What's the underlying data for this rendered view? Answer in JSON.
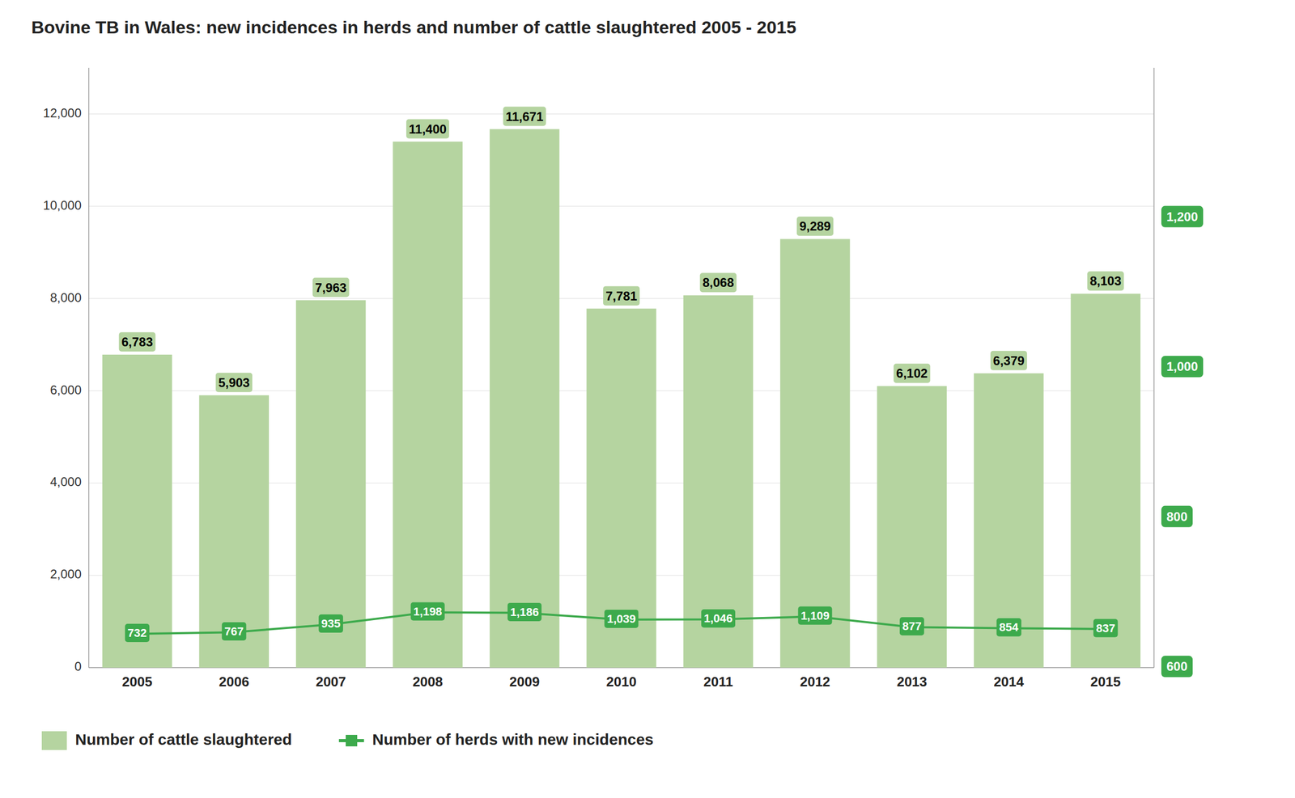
{
  "chart_data": {
    "type": "bar",
    "title": "Bovine TB in Wales: new incidences in herds and number of cattle slaughtered 2005 - 2015",
    "categories": [
      "2005",
      "2006",
      "2007",
      "2008",
      "2009",
      "2010",
      "2011",
      "2012",
      "2013",
      "2014",
      "2015"
    ],
    "series": [
      {
        "name": "Number of cattle slaughtered",
        "type": "bar",
        "color": "#b5d4a0",
        "values": [
          6783,
          5903,
          7963,
          11400,
          11671,
          7781,
          8068,
          9289,
          6102,
          6379,
          8103
        ],
        "value_labels": [
          "6,783",
          "5,903",
          "7,963",
          "11,400",
          "11,671",
          "7,781",
          "8,068",
          "9,289",
          "6,102",
          "6,379",
          "8,103"
        ]
      },
      {
        "name": "Number of herds with new incidences",
        "type": "line",
        "color": "#3daa4c",
        "marker": "square",
        "values": [
          732,
          767,
          935,
          1198,
          1186,
          1039,
          1046,
          1109,
          877,
          854,
          837
        ],
        "value_labels": [
          "732",
          "767",
          "935",
          "1,198",
          "1,186",
          "1,039",
          "1,046",
          "1,109",
          "877",
          "854",
          "837"
        ]
      }
    ],
    "ylim": [
      0,
      13000
    ],
    "yticks": [
      0,
      {
        "value": 2000,
        "label": "2,000"
      },
      {
        "value": 4000,
        "label": "4,000"
      },
      {
        "value": 6000,
        "label": "6,000"
      },
      {
        "value": 8000,
        "label": "8,000"
      },
      {
        "value": 10000,
        "label": "10,000"
      },
      {
        "value": 12000,
        "label": "12,000"
      }
    ],
    "y2lim": [
      600,
      1400
    ],
    "y2ticks": [
      600,
      800,
      {
        "value": 1000,
        "label": "1,000"
      },
      {
        "value": 1200,
        "label": "1,200"
      }
    ],
    "grid": true,
    "legend": "bottom",
    "data_labels": true
  }
}
